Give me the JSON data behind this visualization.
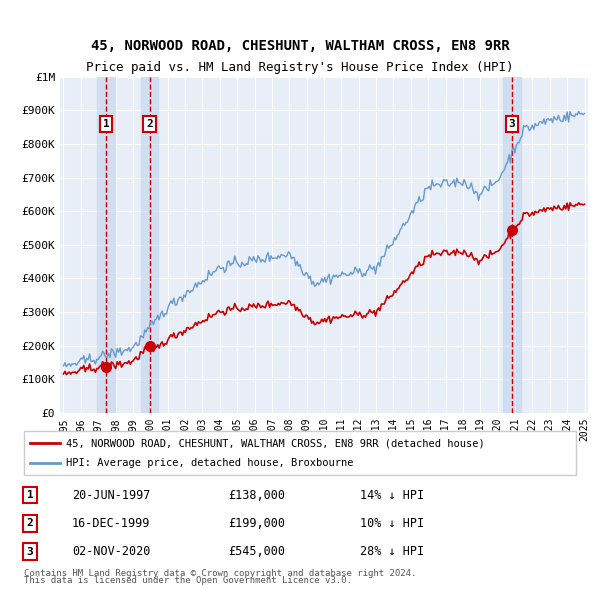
{
  "title_line1": "45, NORWOOD ROAD, CHESHUNT, WALTHAM CROSS, EN8 9RR",
  "title_line2": "Price paid vs. HM Land Registry's House Price Index (HPI)",
  "sale_dates": [
    "1997-06-20",
    "1999-12-16",
    "2020-11-02"
  ],
  "sale_prices": [
    138000,
    199000,
    545000
  ],
  "sale_labels": [
    "1",
    "2",
    "3"
  ],
  "sale_info": [
    {
      "label": "1",
      "date": "20-JUN-1997",
      "price": "£138,000",
      "hpi": "14% ↓ HPI"
    },
    {
      "label": "2",
      "date": "16-DEC-1999",
      "price": "£199,000",
      "hpi": "10% ↓ HPI"
    },
    {
      "label": "3",
      "date": "02-NOV-2020",
      "price": "£545,000",
      "hpi": "28% ↓ HPI"
    }
  ],
  "legend_line1": "45, NORWOOD ROAD, CHESHUNT, WALTHAM CROSS, EN8 9RR (detached house)",
  "legend_line2": "HPI: Average price, detached house, Broxbourne",
  "footer_line1": "Contains HM Land Registry data © Crown copyright and database right 2024.",
  "footer_line2": "This data is licensed under the Open Government Licence v3.0.",
  "plot_bg": "#e8eef8",
  "grid_color": "#ffffff",
  "hpi_color": "#6699cc",
  "price_color": "#cc0000",
  "sale_marker_color": "#cc0000",
  "vline_color": "#cc0000",
  "vband_color": "#c8d8f0",
  "label_box_color": "#cc0000",
  "ylim": [
    0,
    1000000
  ],
  "yticks": [
    0,
    100000,
    200000,
    300000,
    400000,
    500000,
    600000,
    700000,
    800000,
    900000,
    1000000
  ],
  "ytick_labels": [
    "£0",
    "£100K",
    "£200K",
    "£300K",
    "£400K",
    "£500K",
    "£600K",
    "£700K",
    "£800K",
    "£900K",
    "£1M"
  ],
  "start_year": 1995,
  "end_year": 2025
}
